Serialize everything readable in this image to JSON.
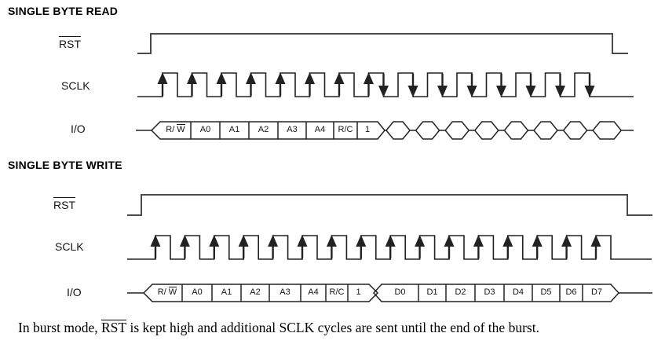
{
  "page": {
    "background": "#ffffff",
    "line_color": "#222222",
    "rst_line_color": "#4a4a4a"
  },
  "read_section": {
    "title": "SINGLE BYTE READ",
    "rst_label": "RST",
    "sclk_label": "SCLK",
    "io_label": "I/O",
    "command_cells": {
      "rw_prefix": "R/",
      "rw_overlined": "W",
      "cells": [
        "A0",
        "A1",
        "A2",
        "A3",
        "A4",
        "R/C",
        "1"
      ]
    },
    "diagram": {
      "sclk_clock_count": 15,
      "rising_edge_arrow_count": 8,
      "falling_edge_arrow_count": 8,
      "undriven_data_slots": 8
    }
  },
  "write_section": {
    "title": "SINGLE BYTE WRITE",
    "rst_label": "RST",
    "sclk_label": "SCLK",
    "io_label": "I/O",
    "command_cells": {
      "rw_prefix": "R/",
      "rw_overlined": "W",
      "cells": [
        "A0",
        "A1",
        "A2",
        "A3",
        "A4",
        "R/C",
        "1"
      ]
    },
    "data_cells": [
      "D0",
      "D1",
      "D2",
      "D3",
      "D4",
      "D5",
      "D6",
      "D7"
    ],
    "diagram": {
      "sclk_clock_count": 16,
      "rising_edge_arrow_count": 16
    }
  },
  "caption": {
    "part1": "In burst mode, ",
    "rst": "RST",
    "part2": " is kept high and additional SCLK cycles are sent until the end of the burst."
  }
}
